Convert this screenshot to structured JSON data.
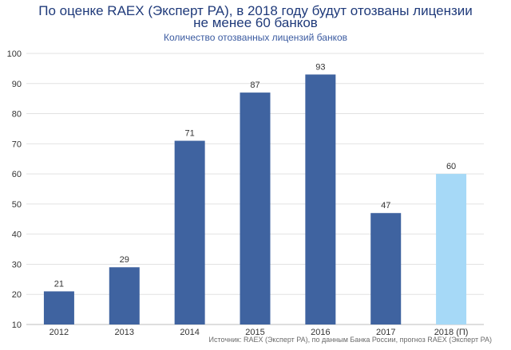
{
  "chart_data": {
    "type": "bar",
    "title_line1": "По оценке RAEX (Эксперт РА), в 2018 году будут отозваны лицензии",
    "title_line2": "не менее 60 банков",
    "subtitle": "Количество отозванных лицензий банков",
    "source": "Источник: RAEX (Эксперт РА), по данным Банка России, прогноз RAEX (Эксперт РА)",
    "categories": [
      "2012",
      "2013",
      "2014",
      "2015",
      "2016",
      "2017",
      "2018 (П)"
    ],
    "values": [
      21,
      29,
      71,
      87,
      93,
      47,
      60
    ],
    "ylim": [
      10,
      100
    ],
    "yticks": [
      10,
      20,
      30,
      40,
      50,
      60,
      70,
      80,
      90,
      100
    ],
    "grid": true,
    "legend": "none",
    "colors": {
      "bar": "#3f63a0",
      "forecast_bar": "#a6d9f7",
      "title": "#1f3a7a",
      "subtitle": "#3a5aa0",
      "grid": "#e2e2e2",
      "axis_text": "#333333"
    }
  }
}
